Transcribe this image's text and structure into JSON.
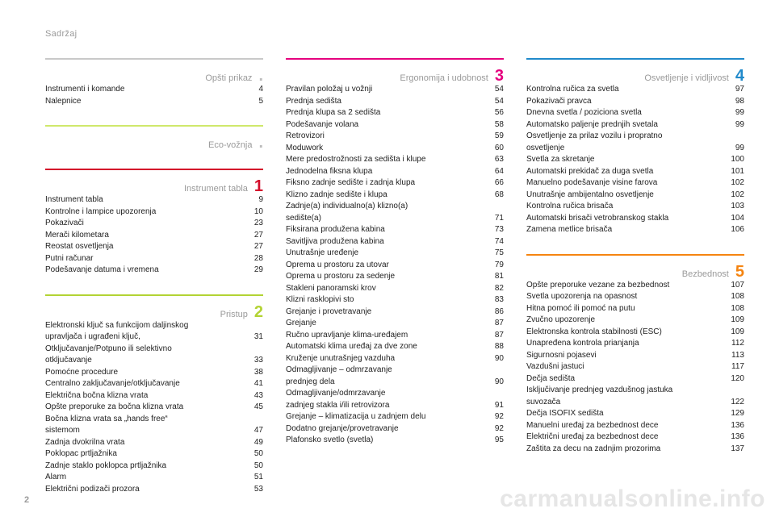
{
  "header": "Sadržaj",
  "pageNumber": "2",
  "watermark": "carmanualsonline.info",
  "columns": [
    {
      "sections": [
        {
          "title": "Opšti prikaz",
          "num": ".",
          "rule": "rule-0",
          "numClass": "num-0",
          "items": [
            {
              "t": "Instrumenti i komande",
              "p": "4"
            },
            {
              "t": "Nalepnice",
              "p": "5"
            }
          ]
        },
        {
          "title": "Eco-vožnja",
          "num": ".",
          "rule": "rule-1",
          "numClass": "num-1",
          "items": []
        },
        {
          "title": "Instrument tabla",
          "num": "1",
          "rule": "rule-2",
          "numClass": "num-2",
          "items": [
            {
              "t": "Instrument tabla",
              "p": "9"
            },
            {
              "t": "Kontrolne i lampice upozorenja",
              "p": "10"
            },
            {
              "t": "Pokazivači",
              "p": "23"
            },
            {
              "t": "Merači kilometara",
              "p": "27"
            },
            {
              "t": "Reostat osvetljenja",
              "p": "27"
            },
            {
              "t": "Putni računar",
              "p": "28"
            },
            {
              "t": "Podešavanje datuma i vremena",
              "p": "29"
            }
          ]
        },
        {
          "title": "Pristup",
          "num": "2",
          "rule": "rule-3",
          "numClass": "num-3",
          "items": [
            {
              "t": "Elektronski ključ sa funkcijom daljinskog",
              "p": ""
            },
            {
              "t": "upravljača i ugrađeni ključ,",
              "p": "31"
            },
            {
              "t": "Otključavanje/Potpuno ili selektivno",
              "p": ""
            },
            {
              "t": "otključavanje",
              "p": "33"
            },
            {
              "t": "Pomoćne procedure",
              "p": "38"
            },
            {
              "t": "Centralno zaključavanje/otključavanje",
              "p": "41"
            },
            {
              "t": "Električna bočna klizna vrata",
              "p": "43"
            },
            {
              "t": "Opšte preporuke za bočna klizna vrata",
              "p": "45"
            },
            {
              "t": "Bočna klizna vrata sa „hands free“",
              "p": ""
            },
            {
              "t": "sistemom",
              "p": "47"
            },
            {
              "t": "Zadnja dvokrilna vrata",
              "p": "49"
            },
            {
              "t": "Poklopac prtljažnika",
              "p": "50"
            },
            {
              "t": "Zadnje staklo poklopca prtljažnika",
              "p": "50"
            },
            {
              "t": "Alarm",
              "p": "51"
            },
            {
              "t": "Električni podizači prozora",
              "p": "53"
            }
          ]
        }
      ]
    },
    {
      "sections": [
        {
          "title": "Ergonomija i udobnost",
          "num": "3",
          "rule": "rule-4",
          "numClass": "num-4",
          "items": [
            {
              "t": "Pravilan položaj u vožnji",
              "p": "54"
            },
            {
              "t": "Prednja sedišta",
              "p": "54"
            },
            {
              "t": "Prednja klupa sa 2 sedišta",
              "p": "56"
            },
            {
              "t": "Podešavanje volana",
              "p": "58"
            },
            {
              "t": "Retrovizori",
              "p": "59"
            },
            {
              "t": "Moduwork",
              "p": "60"
            },
            {
              "t": "Mere predostrožnosti za sedišta i klupe",
              "p": "63"
            },
            {
              "t": "Jednodelna fiksna klupa",
              "p": "64"
            },
            {
              "t": "Fiksno zadnje sedište i zadnja klupa",
              "p": "66"
            },
            {
              "t": "Klizno zadnje sedište i klupa",
              "p": "68"
            },
            {
              "t": "Zadnje(a) individualno(a) klizno(a)",
              "p": ""
            },
            {
              "t": "sedište(a)",
              "p": "71"
            },
            {
              "t": "Fiksirana produžena kabina",
              "p": "73"
            },
            {
              "t": "Savitljiva produžena kabina",
              "p": "74"
            },
            {
              "t": "Unutrašnje uređenje",
              "p": "75"
            },
            {
              "t": "Oprema u prostoru za utovar",
              "p": "79"
            },
            {
              "t": "Oprema u prostoru za sedenje",
              "p": "81"
            },
            {
              "t": "Stakleni panoramski krov",
              "p": "82"
            },
            {
              "t": "Klizni rasklopivi sto",
              "p": "83"
            },
            {
              "t": "Grejanje i provetravanje",
              "p": "86"
            },
            {
              "t": "Grejanje",
              "p": "87"
            },
            {
              "t": "Ručno upravljanje klima-uređajem",
              "p": "87"
            },
            {
              "t": "Automatski klima uređaj za dve zone",
              "p": "88"
            },
            {
              "t": "Kruženje unutrašnjeg vazduha",
              "p": "90"
            },
            {
              "t": "Odmagljivanje – odmrzavanje",
              "p": ""
            },
            {
              "t": "prednjeg dela",
              "p": "90"
            },
            {
              "t": "Odmagljivanje/odmrzavanje",
              "p": ""
            },
            {
              "t": "zadnjeg stakla i/ili retrovizora",
              "p": "91"
            },
            {
              "t": "Grejanje – klimatizacija u zadnjem delu",
              "p": "92"
            },
            {
              "t": "Dodatno grejanje/provetravanje",
              "p": "92"
            },
            {
              "t": "Plafonsko svetlo (svetla)",
              "p": "95"
            }
          ]
        }
      ]
    },
    {
      "sections": [
        {
          "title": "Osvetljenje i vidljivost",
          "num": "4",
          "rule": "rule-5",
          "numClass": "num-5",
          "items": [
            {
              "t": "Kontrolna ručica za svetla",
              "p": "97"
            },
            {
              "t": "Pokazivači pravca",
              "p": "98"
            },
            {
              "t": "Dnevna svetla / poziciona svetla",
              "p": "99"
            },
            {
              "t": "Automatsko paljenje prednjih svetala",
              "p": "99"
            },
            {
              "t": "Osvetljenje za prilaz vozilu i propratno",
              "p": ""
            },
            {
              "t": "osvetljenje",
              "p": "99"
            },
            {
              "t": "Svetla za skretanje",
              "p": "100"
            },
            {
              "t": "Automatski prekidač za duga svetla",
              "p": "101"
            },
            {
              "t": "Manuelno podešavanje visine farova",
              "p": "102"
            },
            {
              "t": "Unutrašnje ambijentalno osvetljenje",
              "p": "102"
            },
            {
              "t": "Kontrolna ručica brisača",
              "p": "103"
            },
            {
              "t": "Automatski brisači vetrobranskog stakla",
              "p": "104"
            },
            {
              "t": "Zamena metlice brisača",
              "p": "106"
            }
          ]
        },
        {
          "title": "Bezbednost",
          "num": "5",
          "rule": "rule-6",
          "numClass": "num-6",
          "items": [
            {
              "t": "Opšte preporuke vezane za bezbednost",
              "p": "107"
            },
            {
              "t": "Svetla upozorenja na opasnost",
              "p": "108"
            },
            {
              "t": "Hitna pomoć ili pomoć na putu",
              "p": "108"
            },
            {
              "t": "Zvučno upozorenje",
              "p": "109"
            },
            {
              "t": "Elektronska kontrola stabilnosti (ESC)",
              "p": "109"
            },
            {
              "t": "Unapređena kontrola prianjanja",
              "p": "112"
            },
            {
              "t": "Sigurnosni pojasevi",
              "p": "113"
            },
            {
              "t": "Vazdušni jastuci",
              "p": "117"
            },
            {
              "t": "Dečja sedišta",
              "p": "120"
            },
            {
              "t": "Isključivanje prednjeg vazdušnog jastuka",
              "p": ""
            },
            {
              "t": "suvozača",
              "p": "122"
            },
            {
              "t": "Dečja ISOFIX sedišta",
              "p": "129"
            },
            {
              "t": "Manuelni uređaj za bezbednost dece",
              "p": "136"
            },
            {
              "t": "Električni uređaj za bezbednost dece",
              "p": "136"
            },
            {
              "t": "Zaštita za decu na zadnjim prozorima",
              "p": "137"
            }
          ]
        }
      ]
    }
  ]
}
